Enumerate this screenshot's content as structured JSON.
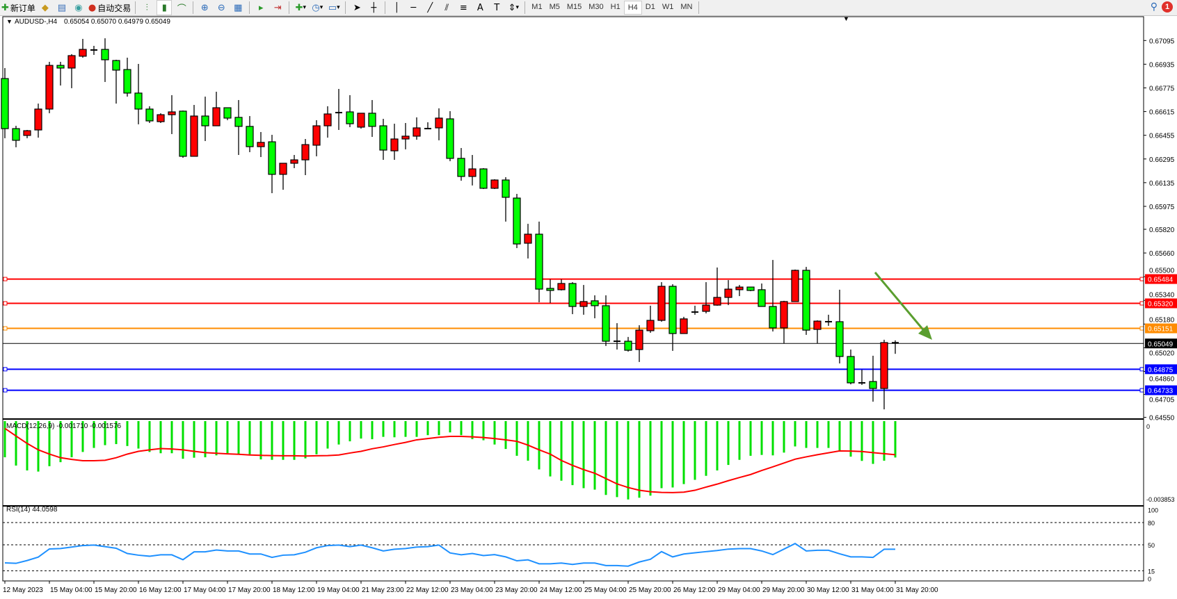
{
  "toolbar": {
    "new_order_label": "新订单",
    "auto_trading_label": "自动交易",
    "timeframes": [
      "M1",
      "M5",
      "M15",
      "M30",
      "H1",
      "H4",
      "D1",
      "W1",
      "MN"
    ],
    "active_timeframe": "H4",
    "notification_count": "1"
  },
  "chart": {
    "symbol_label": "AUDUSD-,H4",
    "ohlc_label": "0.65054 0.65070 0.64979 0.65049",
    "colors": {
      "bull_body": "#ff0000",
      "bear_body": "#00ff00",
      "macd_hist": "#00e000",
      "macd_signal": "#ff0000",
      "rsi_line": "#1e90ff",
      "arrow": "#5a9e2f"
    },
    "price_axis_labels": [
      "0.67095",
      "0.66935",
      "0.66775",
      "0.66615",
      "0.66455",
      "0.66295",
      "0.66135",
      "0.65975",
      "0.65820",
      "0.65660",
      "0.65500",
      "0.65340",
      "0.65180",
      "0.65020",
      "0.64860",
      "0.64705",
      "0.64550"
    ],
    "horizontal_lines": [
      {
        "price": "0.65484",
        "color": "#ff0000"
      },
      {
        "price": "0.65320",
        "color": "#ff0000"
      },
      {
        "price": "0.65151",
        "color": "#ff8c00"
      },
      {
        "price": "0.64875",
        "color": "#0000ff"
      },
      {
        "price": "0.64733",
        "color": "#0000ff"
      }
    ],
    "current_price": "0.65049",
    "time_labels": [
      "12 May 2023",
      "15 May 04:00",
      "15 May 20:00",
      "16 May 12:00",
      "17 May 04:00",
      "17 May 20:00",
      "18 May 12:00",
      "19 May 04:00",
      "21 May 23:00",
      "22 May 12:00",
      "23 May 04:00",
      "23 May 20:00",
      "24 May 12:00",
      "25 May 04:00",
      "25 May 20:00",
      "26 May 12:00",
      "29 May 04:00",
      "29 May 20:00",
      "30 May 12:00",
      "31 May 04:00",
      "31 May 20:00"
    ],
    "candles": [
      [
        0.66838,
        0.66909,
        0.66435,
        0.665
      ],
      [
        0.665,
        0.66519,
        0.66374,
        0.66421
      ],
      [
        0.66454,
        0.66491,
        0.66435,
        0.66486
      ],
      [
        0.66491,
        0.66669,
        0.66439,
        0.66632
      ],
      [
        0.66632,
        0.66951,
        0.66604,
        0.66927
      ],
      [
        0.66927,
        0.66951,
        0.66791,
        0.66909
      ],
      [
        0.66909,
        0.67003,
        0.66773,
        0.66993
      ],
      [
        0.66989,
        0.67106,
        0.66979,
        0.67035
      ],
      [
        0.67031,
        0.67059,
        0.66998,
        0.67031
      ],
      [
        0.67035,
        0.6711,
        0.66815,
        0.66965
      ],
      [
        0.6696,
        0.66965,
        0.66669,
        0.66895
      ],
      [
        0.66899,
        0.66979,
        0.66716,
        0.6674
      ],
      [
        0.6674,
        0.66937,
        0.66529,
        0.66632
      ],
      [
        0.66632,
        0.66651,
        0.66538,
        0.66552
      ],
      [
        0.66547,
        0.66604,
        0.66538,
        0.66594
      ],
      [
        0.66594,
        0.66726,
        0.66463,
        0.66613
      ],
      [
        0.66618,
        0.66622,
        0.66303,
        0.66313
      ],
      [
        0.66313,
        0.6666,
        0.66313,
        0.66585
      ],
      [
        0.66585,
        0.66716,
        0.66416,
        0.66519
      ],
      [
        0.66519,
        0.66749,
        0.66519,
        0.66641
      ],
      [
        0.66641,
        0.66641,
        0.66557,
        0.66571
      ],
      [
        0.66576,
        0.66693,
        0.66322,
        0.66515
      ],
      [
        0.66515,
        0.66585,
        0.66341,
        0.66378
      ],
      [
        0.66378,
        0.66477,
        0.66308,
        0.66407
      ],
      [
        0.66411,
        0.66458,
        0.66064,
        0.66191
      ],
      [
        0.66191,
        0.66266,
        0.66087,
        0.66266
      ],
      [
        0.66266,
        0.66322,
        0.66233,
        0.66289
      ],
      [
        0.66289,
        0.6643,
        0.66186,
        0.66392
      ],
      [
        0.66388,
        0.66557,
        0.66313,
        0.66519
      ],
      [
        0.66519,
        0.66651,
        0.66439,
        0.66599
      ],
      [
        0.66604,
        0.66768,
        0.66491,
        0.66608
      ],
      [
        0.66613,
        0.66726,
        0.6651,
        0.66533
      ],
      [
        0.6651,
        0.66604,
        0.665,
        0.66604
      ],
      [
        0.66604,
        0.66693,
        0.66444,
        0.66515
      ],
      [
        0.66519,
        0.66566,
        0.66289,
        0.66355
      ],
      [
        0.6635,
        0.66533,
        0.66289,
        0.6643
      ],
      [
        0.6643,
        0.66538,
        0.6636,
        0.66449
      ],
      [
        0.66449,
        0.66576,
        0.66425,
        0.66505
      ],
      [
        0.665,
        0.66543,
        0.66496,
        0.665
      ],
      [
        0.66505,
        0.66637,
        0.66421,
        0.66571
      ],
      [
        0.66566,
        0.66618,
        0.6628,
        0.66299
      ],
      [
        0.66299,
        0.66369,
        0.66148,
        0.66177
      ],
      [
        0.66177,
        0.66322,
        0.66116,
        0.66228
      ],
      [
        0.66228,
        0.66233,
        0.66092,
        0.66097
      ],
      [
        0.66097,
        0.66158,
        0.66092,
        0.66153
      ],
      [
        0.66153,
        0.66172,
        0.65872,
        0.66036
      ],
      [
        0.66031,
        0.66059,
        0.65693,
        0.65721
      ],
      [
        0.65726,
        0.65857,
        0.65623,
        0.65787
      ],
      [
        0.65787,
        0.65872,
        0.65327,
        0.65416
      ],
      [
        0.65421,
        0.65482,
        0.65322,
        0.65407
      ],
      [
        0.65412,
        0.65482,
        0.65407,
        0.65454
      ],
      [
        0.65454,
        0.65463,
        0.65247,
        0.65299
      ],
      [
        0.65299,
        0.65444,
        0.65243,
        0.65332
      ],
      [
        0.65337,
        0.65374,
        0.65219,
        0.65304
      ],
      [
        0.65304,
        0.65374,
        0.65032,
        0.65064
      ],
      [
        0.65064,
        0.65186,
        0.65008,
        0.65064
      ],
      [
        0.65064,
        0.65093,
        0.64994,
        0.65003
      ],
      [
        0.65008,
        0.65172,
        0.64924,
        0.65139
      ],
      [
        0.65135,
        0.65304,
        0.65121,
        0.65205
      ],
      [
        0.65205,
        0.65463,
        0.65196,
        0.65435
      ],
      [
        0.65435,
        0.65449,
        0.64999,
        0.65116
      ],
      [
        0.65116,
        0.65229,
        0.65116,
        0.65215
      ],
      [
        0.65261,
        0.65304,
        0.65243,
        0.65261
      ],
      [
        0.65266,
        0.65463,
        0.65252,
        0.65308
      ],
      [
        0.65308,
        0.65562,
        0.65304,
        0.6536
      ],
      [
        0.6536,
        0.65477,
        0.65308,
        0.65416
      ],
      [
        0.65412,
        0.65444,
        0.65369,
        0.6543
      ],
      [
        0.6543,
        0.6543,
        0.65402,
        0.65407
      ],
      [
        0.65412,
        0.65454,
        0.65299,
        0.65299
      ],
      [
        0.65299,
        0.65613,
        0.6513,
        0.65154
      ],
      [
        0.65154,
        0.65337,
        0.6505,
        0.65332
      ],
      [
        0.65332,
        0.65548,
        0.65332,
        0.65543
      ],
      [
        0.65543,
        0.65566,
        0.65107,
        0.65139
      ],
      [
        0.65144,
        0.65205,
        0.6505,
        0.652
      ],
      [
        0.65196,
        0.65243,
        0.65168,
        0.65196
      ],
      [
        0.65196,
        0.65412,
        0.64914,
        0.64961
      ],
      [
        0.64961,
        0.65008,
        0.64773,
        0.64783
      ],
      [
        0.64783,
        0.64872,
        0.64769,
        0.64783
      ],
      [
        0.64792,
        0.64966,
        0.64656,
        0.64745
      ],
      [
        0.64745,
        0.65074,
        0.64604,
        0.65055
      ],
      [
        0.65054,
        0.6507,
        0.64979,
        0.65049
      ]
    ]
  },
  "macd": {
    "label": "MACD(12,26,9) -0.001710 -0.001576",
    "axis_labels": [
      "0",
      "-0.003853"
    ],
    "range": [
      -0.003853,
      0
    ],
    "histogram": [
      -0.0017,
      -0.00209,
      -0.00232,
      -0.00237,
      -0.00212,
      -0.00193,
      -0.0017,
      -0.00145,
      -0.00126,
      -0.00113,
      -0.00108,
      -0.00117,
      -0.00129,
      -0.00145,
      -0.00151,
      -0.00151,
      -0.00177,
      -0.00172,
      -0.0017,
      -0.00161,
      -0.00151,
      -0.00156,
      -0.00156,
      -0.0018,
      -0.00182,
      -0.00182,
      -0.00182,
      -0.00175,
      -0.00156,
      -0.00129,
      -0.0011,
      -0.00095,
      -0.00082,
      -0.00085,
      -0.00074,
      -0.00076,
      -0.00074,
      -0.00074,
      -0.00066,
      -0.00066,
      -0.00053,
      -0.00066,
      -0.00085,
      -0.0009,
      -0.0011,
      -0.00131,
      -0.00163,
      -0.00186,
      -0.00227,
      -0.0026,
      -0.0028,
      -0.00301,
      -0.00315,
      -0.00322,
      -0.00347,
      -0.00357,
      -0.00368,
      -0.0036,
      -0.0035,
      -0.00315,
      -0.00312,
      -0.00296,
      -0.00276,
      -0.00257,
      -0.00232,
      -0.00206,
      -0.00182,
      -0.00163,
      -0.00159,
      -0.00161,
      -0.00148,
      -0.00119,
      -0.00126,
      -0.00126,
      -0.00126,
      -0.00138,
      -0.00167,
      -0.00187,
      -0.00201,
      -0.00186,
      -0.00171
    ],
    "signal": [
      -0.00034,
      -0.0007,
      -0.00105,
      -0.00135,
      -0.00155,
      -0.00172,
      -0.0018,
      -0.00186,
      -0.00186,
      -0.00184,
      -0.00172,
      -0.00155,
      -0.00142,
      -0.00135,
      -0.00129,
      -0.00131,
      -0.00135,
      -0.00142,
      -0.00148,
      -0.00151,
      -0.00154,
      -0.00156,
      -0.00159,
      -0.00161,
      -0.00162,
      -0.00163,
      -0.00163,
      -0.00164,
      -0.00163,
      -0.00162,
      -0.00159,
      -0.0015,
      -0.00142,
      -0.0013,
      -0.00121,
      -0.0011,
      -0.001,
      -0.00088,
      -0.00082,
      -0.00076,
      -0.00072,
      -0.00072,
      -0.00074,
      -0.00077,
      -0.00082,
      -0.00088,
      -0.00095,
      -0.00113,
      -0.00135,
      -0.00155,
      -0.00185,
      -0.00208,
      -0.00228,
      -0.00245,
      -0.0027,
      -0.00295,
      -0.00312,
      -0.00325,
      -0.00332,
      -0.00335,
      -0.00336,
      -0.00334,
      -0.00325,
      -0.0031,
      -0.00296,
      -0.0028,
      -0.00265,
      -0.00251,
      -0.00232,
      -0.00215,
      -0.00197,
      -0.00179,
      -0.00168,
      -0.00158,
      -0.00149,
      -0.0014,
      -0.00141,
      -0.00143,
      -0.00148,
      -0.00153,
      -0.00158
    ]
  },
  "rsi": {
    "label": "RSI(14) 44.0598",
    "axis_labels": [
      "100",
      "80",
      "50",
      "15",
      "0"
    ],
    "levels": [
      80,
      50,
      15
    ],
    "values": [
      25.6,
      25,
      28.8,
      33.4,
      44.4,
      45,
      47,
      49,
      49.6,
      47.5,
      45.3,
      38.3,
      36,
      34.6,
      36.5,
      36.5,
      29.9,
      40.5,
      40.5,
      43,
      41.7,
      41.7,
      37.6,
      37.6,
      33,
      36,
      36.5,
      40,
      46,
      49,
      49.6,
      47.5,
      49.6,
      46,
      41.7,
      44,
      45,
      47,
      47.5,
      49.6,
      39,
      36.5,
      38.3,
      35.5,
      36.8,
      33.7,
      28.4,
      29.7,
      24.4,
      24.4,
      25.4,
      23.5,
      25.4,
      25.4,
      22,
      22,
      21.2,
      26.8,
      30.5,
      40.8,
      33.7,
      37.6,
      39.2,
      40.8,
      42.3,
      44.2,
      44.8,
      44.8,
      41.7,
      36.8,
      44.2,
      51.7,
      41.7,
      42.6,
      42.6,
      37.9,
      33.7,
      33.7,
      33,
      44,
      44.0598
    ]
  }
}
